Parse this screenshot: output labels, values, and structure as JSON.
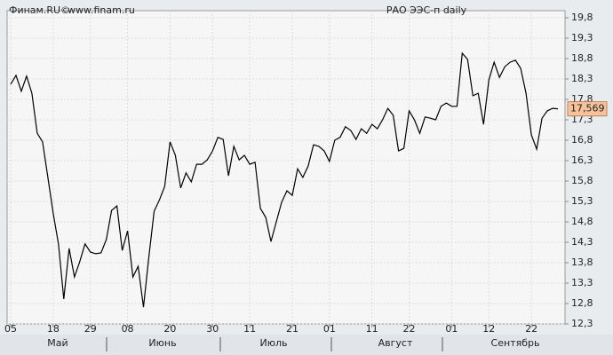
{
  "chart_data": {
    "type": "line",
    "source": "Финам.RU©",
    "site": "www.finam.ru",
    "title": "РАО ЭЭС-п daily",
    "categories": [
      "05",
      null,
      null,
      null,
      null,
      null,
      null,
      null,
      "18",
      null,
      null,
      null,
      null,
      null,
      null,
      "29",
      null,
      null,
      null,
      null,
      null,
      null,
      "08",
      null,
      null,
      null,
      null,
      null,
      null,
      null,
      "20",
      null,
      null,
      null,
      null,
      null,
      null,
      null,
      "30",
      null,
      null,
      null,
      null,
      null,
      null,
      "11",
      null,
      null,
      null,
      null,
      null,
      null,
      null,
      "21",
      null,
      null,
      null,
      null,
      null,
      null,
      "01",
      null,
      null,
      null,
      null,
      null,
      null,
      null,
      "11",
      null,
      null,
      null,
      null,
      null,
      null,
      "22",
      null,
      null,
      null,
      null,
      null,
      null,
      null,
      "01",
      null,
      null,
      null,
      null,
      null,
      null,
      "12",
      null,
      null,
      null,
      null,
      null,
      null,
      null,
      "22",
      null,
      null,
      null,
      null,
      null
    ],
    "months": [
      "Май",
      "Июнь",
      "Июль",
      "Август",
      "Сентябрь"
    ],
    "series": [
      {
        "name": "РАО ЭЭС-п",
        "color": "#000000",
        "values": [
          18.17,
          18.39,
          18.0,
          18.37,
          17.95,
          16.97,
          16.76,
          15.89,
          15.02,
          14.26,
          12.91,
          14.15,
          13.45,
          13.82,
          14.26,
          14.06,
          14.02,
          14.04,
          14.37,
          15.08,
          15.19,
          14.1,
          14.58,
          13.45,
          13.71,
          12.71,
          13.93,
          15.06,
          15.34,
          15.67,
          16.76,
          16.43,
          15.63,
          16.0,
          15.78,
          16.21,
          16.21,
          16.32,
          16.54,
          16.87,
          16.82,
          15.93,
          16.65,
          16.32,
          16.43,
          16.21,
          16.26,
          15.13,
          14.91,
          14.32,
          14.8,
          15.28,
          15.56,
          15.45,
          16.1,
          15.89,
          16.17,
          16.69,
          16.65,
          16.54,
          16.28,
          16.8,
          16.87,
          17.13,
          17.04,
          16.82,
          17.08,
          16.97,
          17.19,
          17.08,
          17.3,
          17.58,
          17.41,
          16.54,
          16.6,
          17.52,
          17.3,
          16.97,
          17.37,
          17.34,
          17.3,
          17.63,
          17.71,
          17.63,
          17.63,
          18.93,
          18.78,
          17.89,
          17.95,
          17.19,
          18.28,
          18.71,
          18.34,
          18.6,
          18.71,
          18.76,
          18.56,
          17.95,
          16.93,
          16.58,
          17.34,
          17.52,
          17.58,
          17.57
        ]
      }
    ],
    "last_price": {
      "value": 17.569,
      "label": "17,569"
    },
    "ylim": [
      12.3,
      19.8
    ],
    "yticks": [
      {
        "value": 19.8,
        "label": "19,8"
      },
      {
        "value": 19.3,
        "label": "19,3"
      },
      {
        "value": 18.8,
        "label": "18,8"
      },
      {
        "value": 18.3,
        "label": "18,3"
      },
      {
        "value": 17.8,
        "label": "17,8"
      },
      {
        "value": 17.3,
        "label": "17,3"
      },
      {
        "value": 16.8,
        "label": "16,8"
      },
      {
        "value": 16.3,
        "label": "16,3"
      },
      {
        "value": 15.8,
        "label": "15,8"
      },
      {
        "value": 15.3,
        "label": "15,3"
      },
      {
        "value": 14.8,
        "label": "14,8"
      },
      {
        "value": 14.3,
        "label": "14,3"
      },
      {
        "value": 13.8,
        "label": "13,8"
      },
      {
        "value": 13.3,
        "label": "13,3"
      },
      {
        "value": 12.8,
        "label": "12,8"
      },
      {
        "value": 12.3,
        "label": "12,3"
      }
    ],
    "grid": true
  }
}
